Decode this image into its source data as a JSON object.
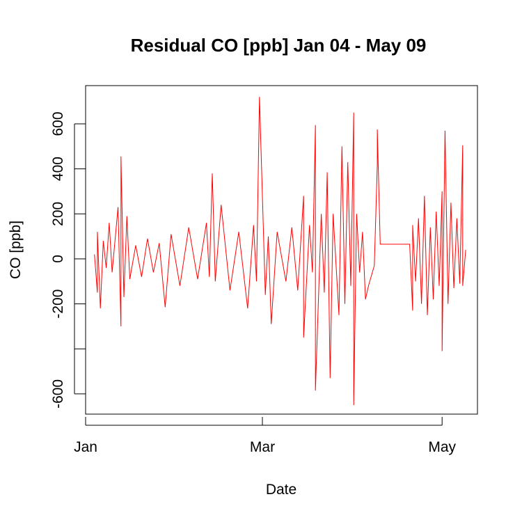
{
  "chart_data": {
    "type": "line",
    "title": "Residual CO [ppb] Jan 04 - May 09",
    "xlabel": "Date",
    "ylabel": "CO [ppb]",
    "x_ticks": [
      {
        "label": "Jan",
        "date": "2000-01-01"
      },
      {
        "label": "Mar",
        "date": "2000-03-01"
      },
      {
        "label": "May",
        "date": "2000-05-01"
      }
    ],
    "y_ticks": [
      {
        "value": -600,
        "label": "-600"
      },
      {
        "value": -400,
        "label": ""
      },
      {
        "value": -200,
        "label": "-200"
      },
      {
        "value": 0,
        "label": "0"
      },
      {
        "value": 200,
        "label": "200"
      },
      {
        "value": 400,
        "label": "400"
      },
      {
        "value": 600,
        "label": "600"
      }
    ],
    "xlim": [
      "2000-01-01",
      "2000-05-13"
    ],
    "ylim": [
      -690,
      770
    ],
    "grid": false,
    "line_color": "#ff0000",
    "series": [
      {
        "values": [
          [
            "2000-01-04",
            20
          ],
          [
            "2000-01-05",
            -150
          ],
          [
            "2000-01-05",
            120
          ],
          [
            "2000-01-06",
            -220
          ],
          [
            "2000-01-07",
            80
          ],
          [
            "2000-01-08",
            -40
          ],
          [
            "2000-01-09",
            160
          ],
          [
            "2000-01-10",
            -60
          ],
          [
            "2000-01-12",
            230
          ],
          [
            "2000-01-13",
            -300
          ],
          [
            "2000-01-13",
            455
          ],
          [
            "2000-01-14",
            -170
          ],
          [
            "2000-01-15",
            190
          ],
          [
            "2000-01-16",
            -90
          ],
          [
            "2000-01-18",
            60
          ],
          [
            "2000-01-20",
            -80
          ],
          [
            "2000-01-22",
            90
          ],
          [
            "2000-01-24",
            -60
          ],
          [
            "2000-01-26",
            70
          ],
          [
            "2000-01-28",
            -215
          ],
          [
            "2000-01-30",
            110
          ],
          [
            "2000-02-02",
            -120
          ],
          [
            "2000-02-05",
            140
          ],
          [
            "2000-02-08",
            -90
          ],
          [
            "2000-02-11",
            160
          ],
          [
            "2000-02-12",
            -80
          ],
          [
            "2000-02-13",
            380
          ],
          [
            "2000-02-14",
            -100
          ],
          [
            "2000-02-16",
            240
          ],
          [
            "2000-02-19",
            -140
          ],
          [
            "2000-02-22",
            120
          ],
          [
            "2000-02-25",
            -220
          ],
          [
            "2000-02-27",
            150
          ],
          [
            "2000-02-28",
            -100
          ],
          [
            "2000-02-29",
            720
          ],
          [
            "2000-03-02",
            -160
          ],
          [
            "2000-03-03",
            100
          ],
          [
            "2000-03-04",
            -290
          ],
          [
            "2000-03-06",
            120
          ],
          [
            "2000-03-09",
            -100
          ],
          [
            "2000-03-11",
            140
          ],
          [
            "2000-03-13",
            -140
          ],
          [
            "2000-03-15",
            280
          ],
          [
            "2000-03-15",
            -350
          ],
          [
            "2000-03-17",
            150
          ],
          [
            "2000-03-18",
            -60
          ],
          [
            "2000-03-19",
            595
          ],
          [
            "2000-03-19",
            -585
          ],
          [
            "2000-03-21",
            200
          ],
          [
            "2000-03-22",
            -150
          ],
          [
            "2000-03-23",
            385
          ],
          [
            "2000-03-24",
            -530
          ],
          [
            "2000-03-25",
            200
          ],
          [
            "2000-03-27",
            -250
          ],
          [
            "2000-03-28",
            500
          ],
          [
            "2000-03-29",
            -200
          ],
          [
            "2000-03-30",
            430
          ],
          [
            "2000-03-31",
            -120
          ],
          [
            "2000-04-01",
            650
          ],
          [
            "2000-04-01",
            -650
          ],
          [
            "2000-04-02",
            200
          ],
          [
            "2000-04-03",
            -60
          ],
          [
            "2000-04-04",
            120
          ],
          [
            "2000-04-05",
            -180
          ],
          [
            "2000-04-06",
            -120
          ],
          [
            "2000-04-08",
            -30
          ],
          [
            "2000-04-09",
            420
          ],
          [
            "2000-04-09",
            575
          ],
          [
            "2000-04-10",
            65
          ],
          [
            "2000-04-20",
            65
          ],
          [
            "2000-04-21",
            -230
          ],
          [
            "2000-04-21",
            150
          ],
          [
            "2000-04-22",
            -100
          ],
          [
            "2000-04-23",
            180
          ],
          [
            "2000-04-24",
            -200
          ],
          [
            "2000-04-25",
            280
          ],
          [
            "2000-04-26",
            -250
          ],
          [
            "2000-04-27",
            140
          ],
          [
            "2000-04-28",
            -180
          ],
          [
            "2000-04-29",
            210
          ],
          [
            "2000-04-30",
            -120
          ],
          [
            "2000-05-01",
            300
          ],
          [
            "2000-05-01",
            -410
          ],
          [
            "2000-05-02",
            570
          ],
          [
            "2000-05-03",
            -200
          ],
          [
            "2000-05-04",
            250
          ],
          [
            "2000-05-05",
            -130
          ],
          [
            "2000-05-06",
            180
          ],
          [
            "2000-05-07",
            -110
          ],
          [
            "2000-05-08",
            505
          ],
          [
            "2000-05-08",
            -120
          ],
          [
            "2000-05-09",
            40
          ]
        ]
      }
    ]
  }
}
